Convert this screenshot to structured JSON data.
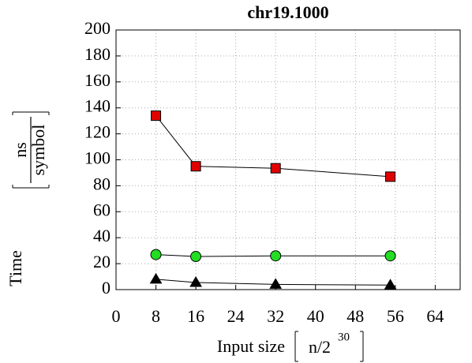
{
  "chart_data": {
    "type": "line",
    "title": "chr19.1000",
    "x_label": {
      "text": "Input size",
      "unit": "n/2",
      "unit_sup": "30"
    },
    "y_label": {
      "text": "Time",
      "unit_num": "ns",
      "unit_den": "symbol"
    },
    "x": [
      8,
      16,
      32,
      55
    ],
    "series": [
      {
        "color": "#e00000",
        "marker": "square",
        "values": [
          134,
          95,
          93.5,
          87
        ]
      },
      {
        "color": "#22dd22",
        "marker": "circle",
        "values": [
          27,
          25.5,
          26,
          26
        ]
      },
      {
        "color": "#000000",
        "marker": "triangle",
        "values": [
          8,
          5.5,
          4,
          3.5
        ]
      }
    ],
    "xlim": [
      0,
      69
    ],
    "xticks": [
      0,
      8,
      16,
      24,
      32,
      40,
      48,
      56,
      64
    ],
    "ylim": [
      0,
      200
    ],
    "yticks": [
      0,
      20,
      40,
      60,
      80,
      100,
      120,
      140,
      160,
      180,
      200
    ],
    "grid": true
  }
}
